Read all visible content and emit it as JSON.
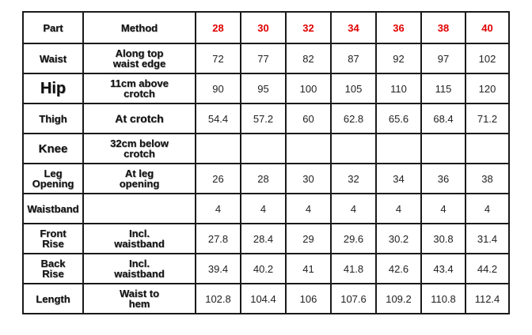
{
  "table": {
    "headers": {
      "part": "Part",
      "method": "Method",
      "sizes": [
        "28",
        "30",
        "32",
        "34",
        "36",
        "38",
        "40"
      ]
    },
    "rows": [
      {
        "part": "Waist",
        "method": "Along top\nwaist edge",
        "values": [
          "72",
          "77",
          "82",
          "87",
          "92",
          "97",
          "102"
        ]
      },
      {
        "part": "Hip",
        "method": "11cm above\ncrotch",
        "values": [
          "90",
          "95",
          "100",
          "105",
          "110",
          "115",
          "120"
        ]
      },
      {
        "part": "Thigh",
        "method": "At crotch",
        "values": [
          "54.4",
          "57.2",
          "60",
          "62.8",
          "65.6",
          "68.4",
          "71.2"
        ]
      },
      {
        "part": "Knee",
        "method": "32cm below\ncrotch",
        "values": [
          "",
          "",
          "",
          "",
          "",
          "",
          ""
        ]
      },
      {
        "part": "Leg\nOpening",
        "method": "At leg\nopening",
        "values": [
          "26",
          "28",
          "30",
          "32",
          "34",
          "36",
          "38"
        ]
      },
      {
        "part": "Waistband",
        "method": "",
        "values": [
          "4",
          "4",
          "4",
          "4",
          "4",
          "4",
          "4"
        ]
      },
      {
        "part": "Front\nRise",
        "method": "Incl.\nwaistband",
        "values": [
          "27.8",
          "28.4",
          "29",
          "29.6",
          "30.2",
          "30.8",
          "31.4"
        ]
      },
      {
        "part": "Back\nRise",
        "method": "Incl.\nwaistband",
        "values": [
          "39.4",
          "40.2",
          "41",
          "41.8",
          "42.6",
          "43.4",
          "44.2"
        ]
      },
      {
        "part": "Length",
        "method": "Waist to\nhem",
        "values": [
          "102.8",
          "104.4",
          "106",
          "107.6",
          "109.2",
          "110.8",
          "112.4"
        ]
      }
    ],
    "colors": {
      "size_header": "#e00000",
      "border": "#1a1a1a",
      "text": "#111111"
    }
  }
}
